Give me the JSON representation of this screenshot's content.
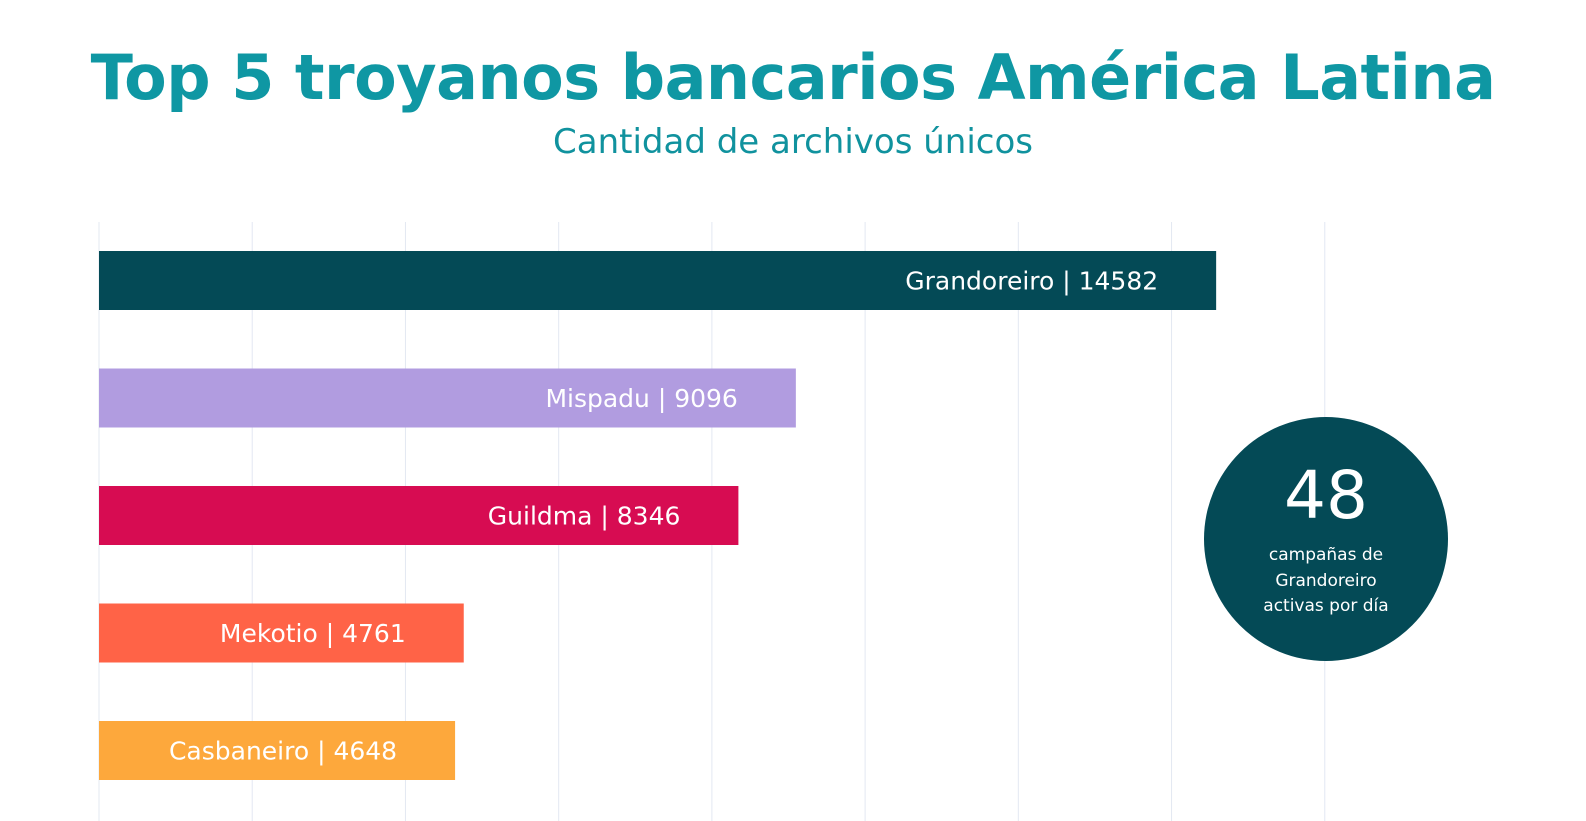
{
  "chart_data": {
    "type": "bar",
    "orientation": "horizontal",
    "title": "Top 5 troyanos bancarios América Latina",
    "subtitle": "Cantidad de archivos únicos",
    "categories": [
      "Grandoreiro",
      "Mispadu",
      "Guildma",
      "Mekotio",
      "Casbaneiro"
    ],
    "values": [
      14582,
      9096,
      8346,
      4761,
      4648
    ],
    "labels": [
      "Grandoreiro | 14582",
      "Mispadu | 9096",
      "Guildma | 8346",
      "Mekotio | 4761",
      "Casbaneiro | 4648"
    ],
    "colors": [
      "#044a56",
      "#b19ce0",
      "#d70c52",
      "#ff6347",
      "#fda83c"
    ],
    "xlim": [
      0,
      18000
    ],
    "grid_step": 2000,
    "grid": true,
    "axis_labels_visible": false,
    "legend": "none"
  },
  "callout": {
    "number": "48",
    "text": "campañas de Grandoreiro activas por día",
    "color": "#044a56"
  },
  "colors": {
    "title": "#0f97a3",
    "gridline": "#e3e8f2"
  }
}
